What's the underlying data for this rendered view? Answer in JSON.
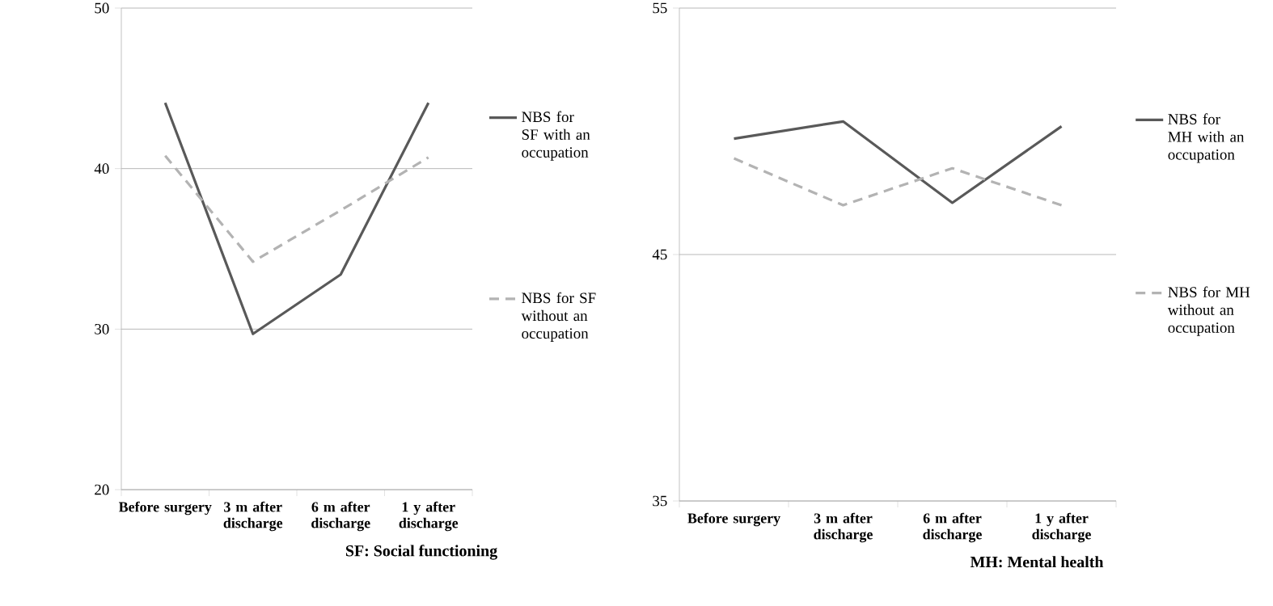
{
  "chart_data": [
    {
      "type": "line",
      "categories": [
        "Before surgery",
        "3 m after discharge",
        "6 m after discharge",
        "1 y after discharge"
      ],
      "xlabel": "SF: Social functioning",
      "ylim": [
        20,
        50
      ],
      "yticks": [
        20,
        30,
        40,
        50
      ],
      "grid": "y",
      "legend": "right",
      "series": [
        {
          "name": "NBS for SF with an occupation",
          "color": "#595959",
          "line_style": "solid",
          "values": [
            44.1,
            29.7,
            33.4,
            44.1
          ]
        },
        {
          "name": "NBS for SF without an occupation",
          "color": "#b3b3b3",
          "line_style": "dashed",
          "values": [
            40.8,
            34.2,
            37.4,
            40.7
          ]
        }
      ]
    },
    {
      "type": "line",
      "categories": [
        "Before surgery",
        "3 m after discharge",
        "6 m after discharge",
        "1 y after discharge"
      ],
      "xlabel": "MH: Mental health",
      "ylim": [
        35,
        55
      ],
      "yticks": [
        35,
        45,
        55
      ],
      "grid": "y",
      "legend": "right",
      "series": [
        {
          "name": "NBS for MH with an occupation",
          "color": "#595959",
          "line_style": "solid",
          "values": [
            49.7,
            50.4,
            47.1,
            50.2
          ]
        },
        {
          "name": "NBS for MH without an occupation",
          "color": "#b3b3b3",
          "line_style": "dashed",
          "values": [
            48.9,
            47.0,
            48.5,
            47.0
          ]
        }
      ]
    }
  ]
}
